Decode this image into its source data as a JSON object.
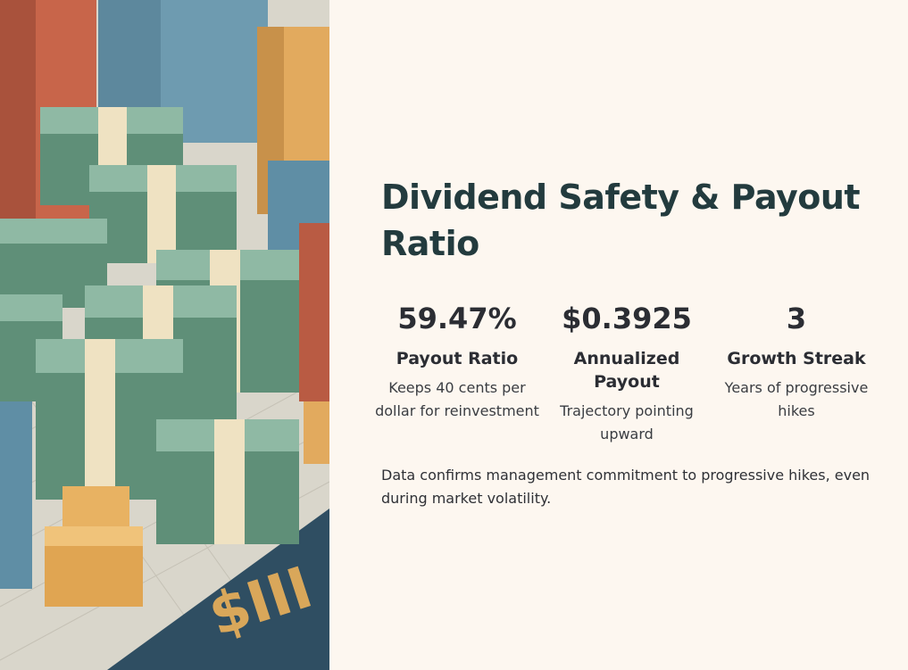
{
  "title": "Dividend Safety & Payout Ratio",
  "stats": [
    {
      "value": "59.47%",
      "label": "Payout Ratio",
      "desc": "Keeps 40 cents per dollar for reinvestment"
    },
    {
      "value": "$0.3925",
      "label": "Annualized Payout",
      "desc": "Trajectory pointing upward"
    },
    {
      "value": "3",
      "label": "Growth Streak",
      "desc": "Years of progressive hikes"
    }
  ],
  "note": "Data confirms management commitment to progressive hikes, even during market volatility.",
  "colors": {
    "background": "#fdf7f0",
    "title": "#233b3e",
    "text": "#2b2d33"
  }
}
